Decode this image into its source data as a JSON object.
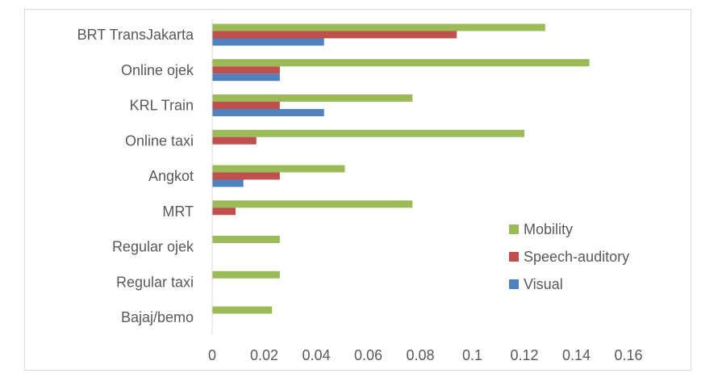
{
  "chart_data": {
    "type": "bar",
    "orientation": "horizontal",
    "title": "",
    "xlabel": "",
    "ylabel": "",
    "categories": [
      "BRT TransJakarta",
      "Online ojek",
      "KRL Train",
      "Online taxi",
      "Angkot",
      "MRT",
      "Regular ojek",
      "Regular taxi",
      "Bajaj/bemo"
    ],
    "series": [
      {
        "name": "Mobility",
        "color": "#9bbb59",
        "values": [
          0.128,
          0.145,
          0.077,
          0.12,
          0.051,
          0.077,
          0.026,
          0.026,
          0.023
        ]
      },
      {
        "name": "Speech-auditory",
        "color": "#c0504d",
        "values": [
          0.094,
          0.026,
          0.026,
          0.017,
          0.026,
          0.009,
          0,
          0,
          0
        ]
      },
      {
        "name": "Visual",
        "color": "#4f81bd",
        "values": [
          0.043,
          0.026,
          0.043,
          0,
          0.012,
          0,
          0,
          0,
          0
        ]
      }
    ],
    "xlim": [
      0,
      0.16
    ],
    "x_ticks": [
      "0",
      "0.02",
      "0.04",
      "0.06",
      "0.08",
      "0.1",
      "0.12",
      "0.14",
      "0.16"
    ],
    "grid": false,
    "legend": {
      "placement": "right",
      "order": [
        "Mobility",
        "Speech-auditory",
        "Visual"
      ]
    }
  }
}
